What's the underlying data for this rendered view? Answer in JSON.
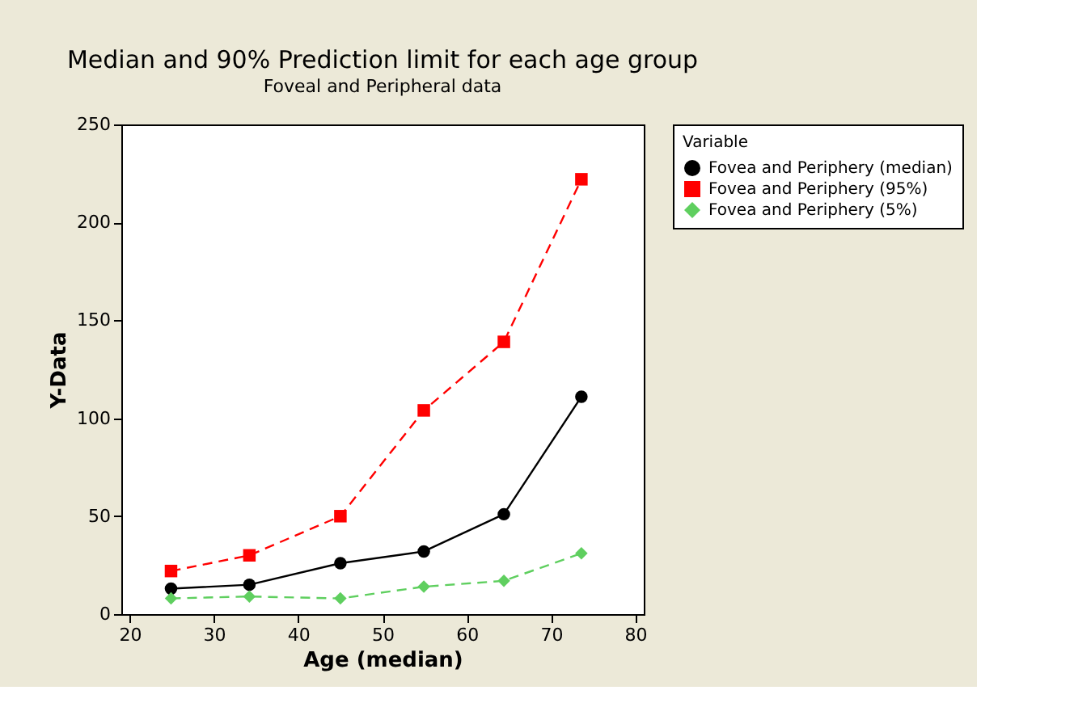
{
  "chart_data": {
    "type": "line",
    "title": "Median and 90% Prediction limit for each age group",
    "subtitle": "Foveal and Peripheral data",
    "xlabel": "Age (median)",
    "ylabel": "Y-Data",
    "legend_title": "Variable",
    "x": [
      24.9,
      34.2,
      45,
      54.9,
      64.4,
      73.6
    ],
    "series": [
      {
        "name": "Fovea and Periphery (median)",
        "color": "#000000",
        "marker": "circle",
        "line_style": "solid",
        "values": [
          13,
          15,
          26,
          32,
          51,
          111
        ]
      },
      {
        "name": "Fovea and Periphery (95%)",
        "color": "#ff0000",
        "marker": "square",
        "line_style": "dashed",
        "values": [
          22,
          30,
          50,
          104,
          139,
          222
        ]
      },
      {
        "name": "Fovea and Periphery (5%)",
        "color": "#5fcf5f",
        "marker": "diamond",
        "line_style": "dashed",
        "values": [
          8,
          9,
          8,
          14,
          17,
          31
        ]
      }
    ],
    "xlim": [
      19,
      81
    ],
    "xticks": [
      20,
      30,
      40,
      50,
      60,
      70,
      80
    ],
    "ylim": [
      0,
      250
    ],
    "yticks": [
      0,
      50,
      100,
      150,
      200,
      250
    ],
    "grid": false,
    "legend": "top right"
  }
}
